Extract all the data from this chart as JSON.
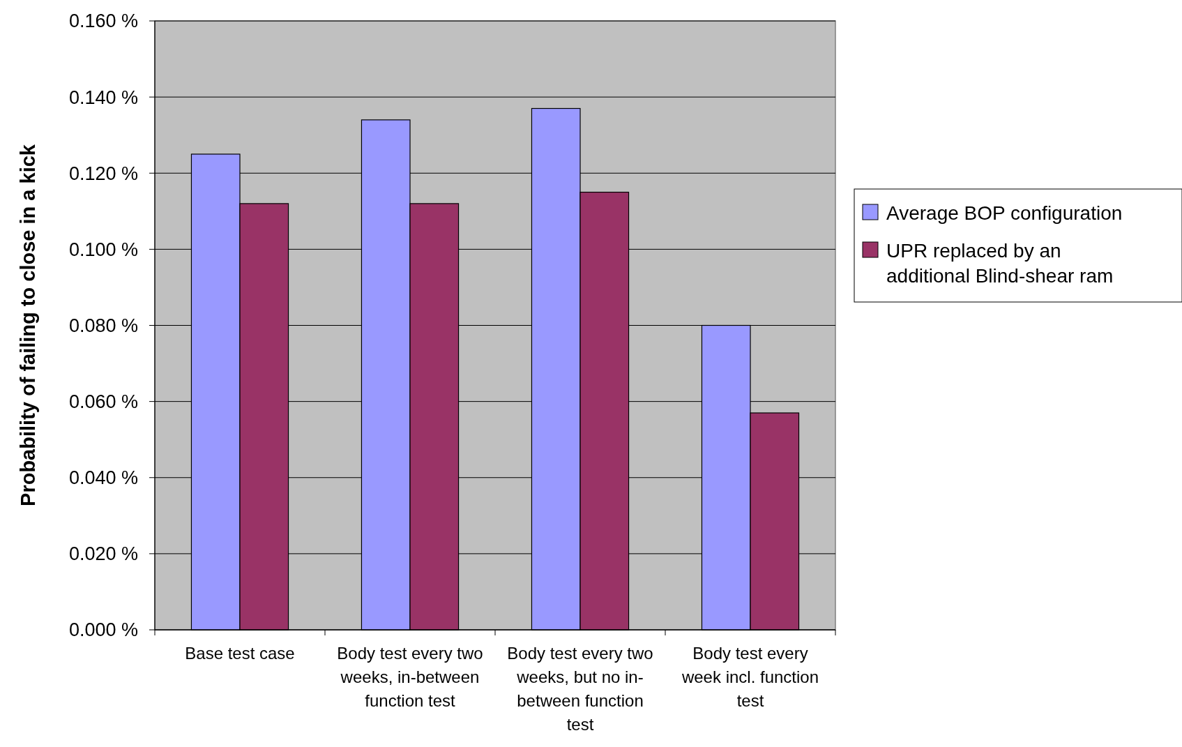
{
  "chart_data": {
    "type": "bar",
    "ylabel": "Probability of failing to close in a kick",
    "categories": [
      "Base test case",
      "Body test every two weeks, in-between function test",
      "Body test every two weeks, but no in-between function test",
      "Body test every week incl. function test"
    ],
    "series": [
      {
        "name": "Average BOP configuration",
        "color": "#9999ff",
        "values": [
          0.125,
          0.134,
          0.137,
          0.08
        ]
      },
      {
        "name": "UPR replaced by an additional Blind-shear ram",
        "color": "#993366",
        "values": [
          0.112,
          0.112,
          0.115,
          0.057
        ]
      }
    ],
    "ylim": [
      0,
      0.16
    ],
    "yticks": [
      {
        "value": 0,
        "label": "0.000 %"
      },
      {
        "value": 0.02,
        "label": "0.020 %"
      },
      {
        "value": 0.04,
        "label": "0.040 %"
      },
      {
        "value": 0.06,
        "label": "0.060 %"
      },
      {
        "value": 0.08,
        "label": "0.080 %"
      },
      {
        "value": 0.1,
        "label": "0.100 %"
      },
      {
        "value": 0.12,
        "label": "0.120 %"
      },
      {
        "value": 0.14,
        "label": "0.140 %"
      },
      {
        "value": 0.16,
        "label": "0.160 %"
      }
    ],
    "grid": "y",
    "legend": "right"
  }
}
